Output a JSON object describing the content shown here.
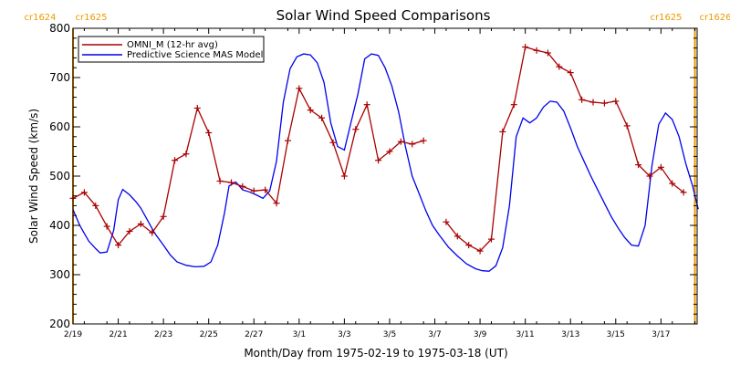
{
  "colors": {
    "omni": "#aa0000",
    "model": "#0000ee",
    "rotation_marker": "#ee9900",
    "axes": "#000000"
  },
  "chart_data": {
    "type": "line",
    "title": "Solar Wind Speed Comparisons",
    "xlabel": "Month/Day from 1975-02-19 to 1975-03-18 (UT)",
    "ylabel": "Solar Wind Speed (km/s)",
    "xlim": [
      0,
      27.6
    ],
    "ylim": [
      200,
      800
    ],
    "x_ticks": [
      {
        "x": 0,
        "label": "2/19"
      },
      {
        "x": 2,
        "label": "2/21"
      },
      {
        "x": 4,
        "label": "2/23"
      },
      {
        "x": 6,
        "label": "2/25"
      },
      {
        "x": 8,
        "label": "2/27"
      },
      {
        "x": 10,
        "label": "3/1"
      },
      {
        "x": 12,
        "label": "3/3"
      },
      {
        "x": 14,
        "label": "3/5"
      },
      {
        "x": 16,
        "label": "3/7"
      },
      {
        "x": 18,
        "label": "3/9"
      },
      {
        "x": 20,
        "label": "3/11"
      },
      {
        "x": 22,
        "label": "3/13"
      },
      {
        "x": 24,
        "label": "3/15"
      },
      {
        "x": 26,
        "label": "3/17"
      }
    ],
    "y_ticks": [
      200,
      300,
      400,
      500,
      600,
      700,
      800
    ],
    "grid": false,
    "legend_position": "top-left",
    "rotation_markers": [
      {
        "x": 0.0,
        "left_label": "cr1624",
        "right_label": "cr1625",
        "side": "left"
      },
      {
        "x": 27.5,
        "left_label": "cr1625",
        "right_label": "cr1626",
        "side": "right"
      }
    ],
    "series": [
      {
        "name": "OMNI_M (12-hr avg)",
        "color": "#aa0000",
        "marker": "+",
        "segments": [
          [
            [
              0.0,
              455
            ],
            [
              0.5,
              467
            ],
            [
              1.0,
              440
            ],
            [
              1.5,
              398
            ],
            [
              2.0,
              360
            ],
            [
              2.5,
              388
            ],
            [
              3.0,
              403
            ],
            [
              3.5,
              385
            ],
            [
              4.0,
              418
            ],
            [
              4.5,
              532
            ],
            [
              5.0,
              545
            ],
            [
              5.5,
              638
            ],
            [
              6.0,
              588
            ],
            [
              6.5,
              490
            ],
            [
              7.0,
              487
            ],
            [
              7.5,
              479
            ],
            [
              8.0,
              470
            ],
            [
              8.5,
              472
            ],
            [
              9.0,
              445
            ],
            [
              9.5,
              572
            ],
            [
              10.0,
              678
            ],
            [
              10.5,
              634
            ],
            [
              11.0,
              618
            ],
            [
              11.5,
              568
            ],
            [
              12.0,
              500
            ],
            [
              12.5,
              595
            ],
            [
              13.0,
              645
            ],
            [
              13.5,
              532
            ],
            [
              14.0,
              550
            ],
            [
              14.5,
              570
            ],
            [
              15.0,
              565
            ],
            [
              15.5,
              572
            ]
          ],
          [
            [
              16.5,
              407
            ],
            [
              17.0,
              378
            ],
            [
              17.5,
              360
            ],
            [
              18.0,
              348
            ],
            [
              18.5,
              372
            ],
            [
              19.0,
              590
            ],
            [
              19.5,
              645
            ],
            [
              20.0,
              762
            ],
            [
              20.5,
              755
            ],
            [
              21.0,
              750
            ],
            [
              21.5,
              722
            ],
            [
              22.0,
              710
            ],
            [
              22.5,
              655
            ],
            [
              23.0,
              650
            ],
            [
              23.5,
              648
            ],
            [
              24.0,
              652
            ],
            [
              24.5,
              602
            ],
            [
              25.0,
              523
            ],
            [
              25.5,
              500
            ],
            [
              26.0,
              518
            ],
            [
              26.5,
              485
            ],
            [
              27.0,
              467
            ]
          ]
        ]
      },
      {
        "name": "Predictive Science MAS Model",
        "color": "#0000ee",
        "marker": "none",
        "segments": [
          [
            [
              0.0,
              432
            ],
            [
              0.3,
              400
            ],
            [
              0.7,
              368
            ],
            [
              1.0,
              353
            ],
            [
              1.2,
              344
            ],
            [
              1.5,
              346
            ],
            [
              1.8,
              390
            ],
            [
              2.0,
              452
            ],
            [
              2.2,
              473
            ],
            [
              2.5,
              462
            ],
            [
              2.8,
              447
            ],
            [
              3.0,
              435
            ],
            [
              3.3,
              410
            ],
            [
              3.6,
              385
            ],
            [
              4.0,
              360
            ],
            [
              4.3,
              340
            ],
            [
              4.6,
              326
            ],
            [
              5.0,
              319
            ],
            [
              5.4,
              316
            ],
            [
              5.8,
              317
            ],
            [
              6.1,
              326
            ],
            [
              6.4,
              360
            ],
            [
              6.7,
              425
            ],
            [
              6.9,
              480
            ],
            [
              7.2,
              488
            ],
            [
              7.5,
              472
            ],
            [
              7.8,
              468
            ],
            [
              8.1,
              462
            ],
            [
              8.4,
              455
            ],
            [
              8.7,
              470
            ],
            [
              9.0,
              530
            ],
            [
              9.3,
              650
            ],
            [
              9.6,
              718
            ],
            [
              9.9,
              742
            ],
            [
              10.2,
              748
            ],
            [
              10.5,
              746
            ],
            [
              10.8,
              730
            ],
            [
              11.1,
              690
            ],
            [
              11.4,
              608
            ],
            [
              11.7,
              560
            ],
            [
              12.0,
              553
            ],
            [
              12.3,
              610
            ],
            [
              12.6,
              667
            ],
            [
              12.9,
              738
            ],
            [
              13.2,
              748
            ],
            [
              13.5,
              745
            ],
            [
              13.8,
              720
            ],
            [
              14.1,
              683
            ],
            [
              14.4,
              630
            ],
            [
              14.7,
              560
            ],
            [
              15.0,
              500
            ],
            [
              15.3,
              465
            ],
            [
              15.6,
              430
            ],
            [
              15.9,
              400
            ],
            [
              16.2,
              380
            ],
            [
              16.6,
              356
            ],
            [
              17.0,
              338
            ],
            [
              17.4,
              322
            ],
            [
              17.8,
              312
            ],
            [
              18.1,
              308
            ],
            [
              18.4,
              307
            ],
            [
              18.7,
              318
            ],
            [
              19.0,
              355
            ],
            [
              19.3,
              440
            ],
            [
              19.6,
              580
            ],
            [
              19.9,
              618
            ],
            [
              20.2,
              608
            ],
            [
              20.5,
              618
            ],
            [
              20.8,
              640
            ],
            [
              21.1,
              652
            ],
            [
              21.4,
              650
            ],
            [
              21.7,
              632
            ],
            [
              22.0,
              598
            ],
            [
              22.3,
              560
            ],
            [
              22.6,
              530
            ],
            [
              22.9,
              500
            ],
            [
              23.2,
              472
            ],
            [
              23.5,
              445
            ],
            [
              23.8,
              418
            ],
            [
              24.1,
              395
            ],
            [
              24.4,
              375
            ],
            [
              24.7,
              360
            ],
            [
              25.0,
              358
            ],
            [
              25.3,
              400
            ],
            [
              25.6,
              520
            ],
            [
              25.9,
              605
            ],
            [
              26.2,
              628
            ],
            [
              26.5,
              615
            ],
            [
              26.8,
              580
            ],
            [
              27.1,
              525
            ],
            [
              27.4,
              480
            ],
            [
              27.65,
              433
            ]
          ]
        ]
      }
    ]
  }
}
